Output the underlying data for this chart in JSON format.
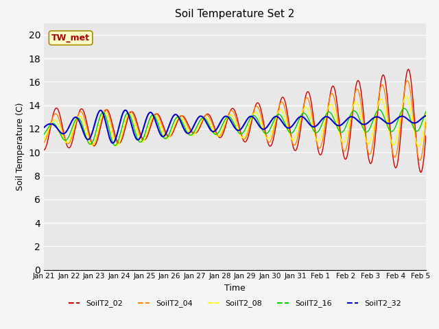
{
  "title": "Soil Temperature Set 2",
  "xlabel": "Time",
  "ylabel": "Soil Temperature (C)",
  "ylim": [
    0,
    21
  ],
  "yticks": [
    0,
    2,
    4,
    6,
    8,
    10,
    12,
    14,
    16,
    18,
    20
  ],
  "series_colors": {
    "SoilT2_02": "#cc0000",
    "SoilT2_04": "#ff8800",
    "SoilT2_08": "#ffff00",
    "SoilT2_16": "#00cc00",
    "SoilT2_32": "#0000cc"
  },
  "series_names": [
    "SoilT2_02",
    "SoilT2_04",
    "SoilT2_08",
    "SoilT2_16",
    "SoilT2_32"
  ],
  "annotation_text": "TW_met",
  "bg_color": "#e8e8e8",
  "xtick_labels": [
    "Jan 21",
    "Jan 22",
    "Jan 23",
    "Jan 24",
    "Jan 25",
    "Jan 26",
    "Jan 27",
    "Jan 28",
    "Jan 29",
    "Jan 30",
    "Jan 31",
    "Feb 1",
    "Feb 2",
    "Feb 3",
    "Feb 4",
    "Feb 5"
  ],
  "xtick_positions": [
    0,
    1,
    2,
    3,
    4,
    5,
    6,
    7,
    8,
    9,
    10,
    11,
    12,
    13,
    14,
    15
  ]
}
